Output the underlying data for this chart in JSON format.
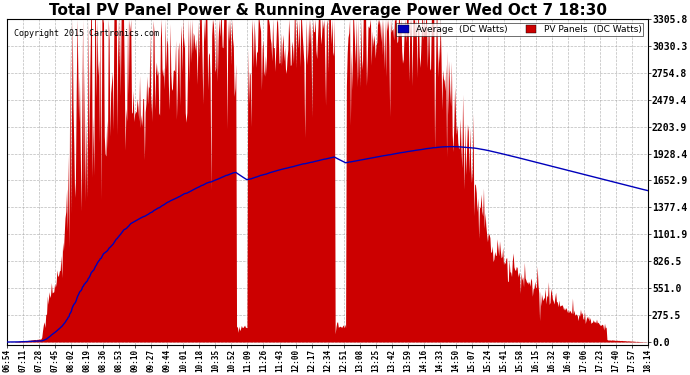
{
  "title": "Total PV Panel Power & Running Average Power Wed Oct 7 18:30",
  "copyright": "Copyright 2015 Cartronics.com",
  "legend_avg": "Average  (DC Watts)",
  "legend_pv": "PV Panels  (DC Watts)",
  "y_max": 3305.8,
  "y_ticks": [
    0.0,
    275.5,
    551.0,
    826.5,
    1101.9,
    1377.4,
    1652.9,
    1928.4,
    2203.9,
    2479.4,
    2754.8,
    3030.3,
    3305.8
  ],
  "background_color": "#ffffff",
  "pv_color": "#cc0000",
  "avg_color": "#0000bb",
  "grid_color": "#aaaaaa",
  "title_fontsize": 11,
  "x_tick_labels": [
    "06:54",
    "07:11",
    "07:28",
    "07:45",
    "08:02",
    "08:19",
    "08:36",
    "08:53",
    "09:10",
    "09:27",
    "09:44",
    "10:01",
    "10:18",
    "10:35",
    "10:52",
    "11:09",
    "11:26",
    "11:43",
    "12:00",
    "12:17",
    "12:34",
    "12:51",
    "13:08",
    "13:25",
    "13:42",
    "13:59",
    "14:16",
    "14:33",
    "14:50",
    "15:07",
    "15:24",
    "15:41",
    "15:58",
    "16:15",
    "16:32",
    "16:49",
    "17:06",
    "17:23",
    "17:40",
    "17:57",
    "18:14"
  ],
  "n_points": 800,
  "seed": 42
}
